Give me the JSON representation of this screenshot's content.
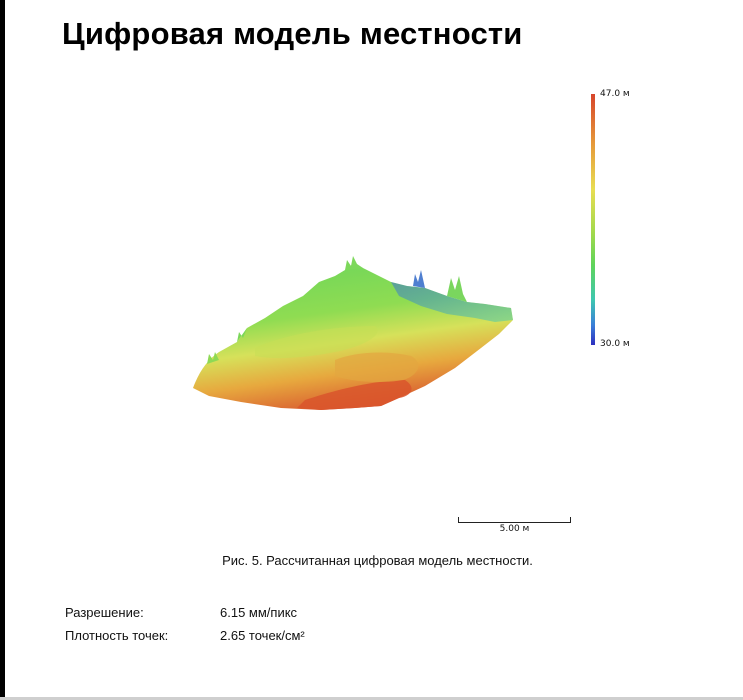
{
  "report": {
    "title": "Цифровая модель местности",
    "caption": "Рис. 5. Рассчитанная цифровая модель местности."
  },
  "colorbar": {
    "max_label": "47.0 м",
    "min_label": "30.0 м",
    "max_value": 47.0,
    "min_value": 30.0,
    "colors": [
      "#d7452b",
      "#e8dd52",
      "#5fd45a",
      "#3ec7b0",
      "#2d2fbf"
    ]
  },
  "scale_bar": {
    "label": "5.00 м"
  },
  "info": [
    {
      "label": "Разрешение:",
      "value": "6.15 мм/пикс"
    },
    {
      "label": "Плотность точек:",
      "value": "2.65 точек/см²"
    }
  ]
}
